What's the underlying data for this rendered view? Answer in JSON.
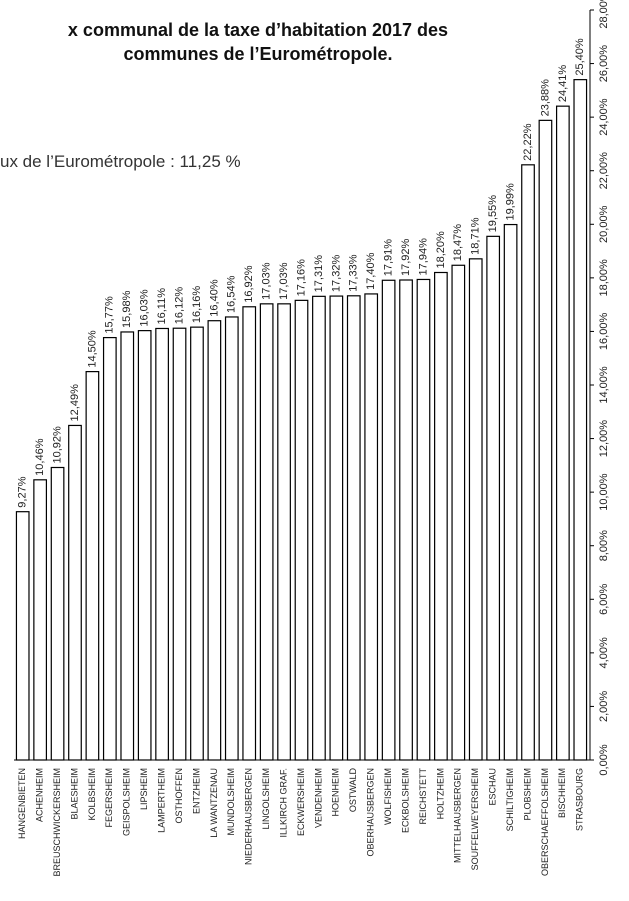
{
  "chart_data": {
    "type": "bar",
    "title": [
      "x communal de la taxe d’habitation 2017 des",
      "communes de l’Eurométropole."
    ],
    "subtitle": "ux de l’Eurométropole : 11,25 %",
    "categories": [
      "HANGENBIETEN",
      "ACHENHEIM",
      "BREUSCHWICKERSHEIM",
      "BLAESHEIM",
      "KOLBSHEIM",
      "FEGERSHEIM",
      "GEISPOLSHEIM",
      "LIPSHEIM",
      "LAMPERTHEIM",
      "OSTHOFFEN",
      "ENTZHEIM",
      "LA WANTZENAU",
      "MUNDOLSHEIM",
      "NIEDERHAUSBERGEN",
      "LINGOLSHEIM",
      "ILLKIRCH GRAF.",
      "ECKWERSHEIM",
      "VENDENHEIM",
      "HOENHEIM",
      "OSTWALD",
      "OBERHAUSBERGEN",
      "WOLFISHEIM",
      "ECKBOLSHEIM",
      "REICHSTETT",
      "HOLTZHEIM",
      "MITTELHAUSBERGEN",
      "SOUFFELWEYERSHEIM",
      "ESCHAU",
      "SCHILTIGHEIM",
      "PLOBSHEIM",
      "OBERSCHAEFFOLSHEIM",
      "BISCHHEIM",
      "STRASBOURG"
    ],
    "values": [
      9.27,
      10.46,
      10.92,
      12.49,
      14.5,
      15.77,
      15.98,
      16.03,
      16.11,
      16.12,
      16.16,
      16.4,
      16.54,
      16.92,
      17.03,
      17.03,
      17.16,
      17.31,
      17.32,
      17.33,
      17.4,
      17.91,
      17.92,
      17.94,
      18.2,
      18.47,
      18.71,
      19.55,
      19.99,
      22.22,
      23.88,
      24.41,
      25.4
    ],
    "value_labels": [
      "9,27%",
      "10,46%",
      "10,92%",
      "12,49%",
      "14,50%",
      "15,77%",
      "15,98%",
      "16,03%",
      "16,11%",
      "16,12%",
      "16,16%",
      "16,40%",
      "16,54%",
      "16,92%",
      "17,03%",
      "17,03%",
      "17,16%",
      "17,31%",
      "17,32%",
      "17,33%",
      "17,40%",
      "17,91%",
      "17,92%",
      "17,94%",
      "18,20%",
      "18,47%",
      "18,71%",
      "19,55%",
      "19,99%",
      "22,22%",
      "23,88%",
      "24,41%",
      "25,40%"
    ],
    "color": "#ffffff",
    "ylim": [
      0,
      28
    ],
    "yticks": [
      {
        "value": 0,
        "label": "0,00%"
      },
      {
        "value": 2,
        "label": "2,00%"
      },
      {
        "value": 4,
        "label": "4,00%"
      },
      {
        "value": 6,
        "label": "6,00%"
      },
      {
        "value": 8,
        "label": "8,00%"
      },
      {
        "value": 10,
        "label": "10,00%"
      },
      {
        "value": 12,
        "label": "12,00%"
      },
      {
        "value": 14,
        "label": "14,00%"
      },
      {
        "value": 16,
        "label": "16,00%"
      },
      {
        "value": 18,
        "label": "18,00%"
      },
      {
        "value": 20,
        "label": "20,00%"
      },
      {
        "value": 22,
        "label": "22,00%"
      },
      {
        "value": 24,
        "label": "24,00%"
      },
      {
        "value": 26,
        "label": "26,00%"
      },
      {
        "value": 28,
        "label": "28,00%"
      }
    ],
    "grid": false
  }
}
